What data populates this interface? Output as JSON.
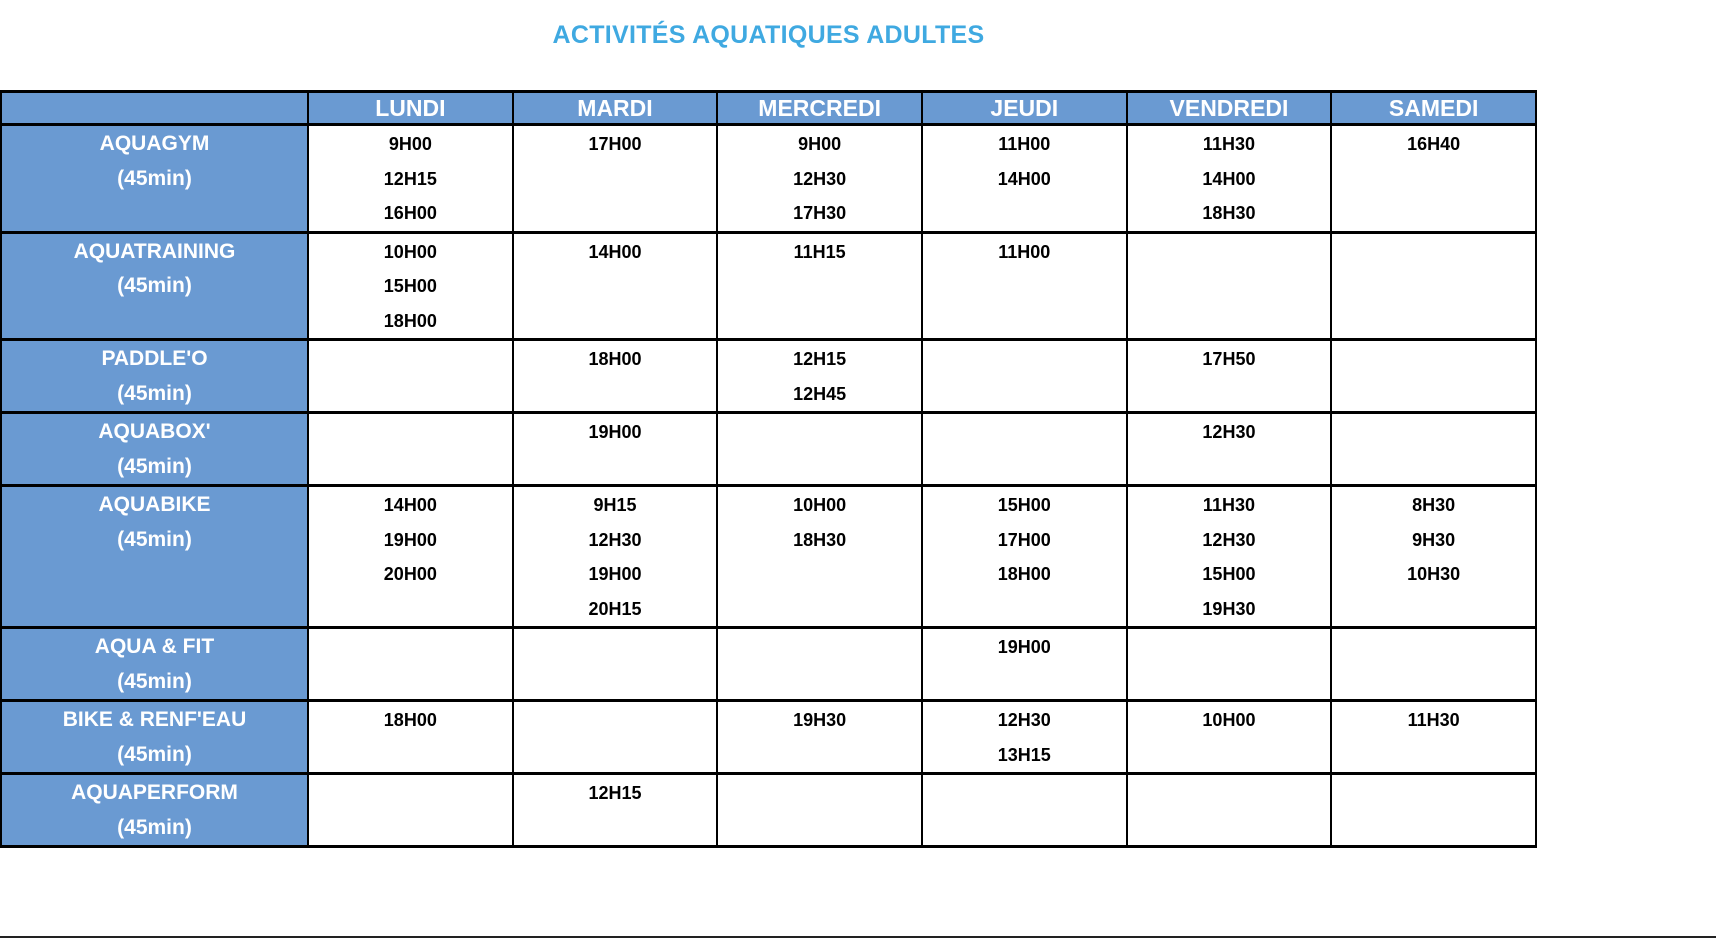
{
  "title": "ACTIVITÉS AQUATIQUES ADULTES",
  "colors": {
    "title_blue": "#3FA9E1",
    "header_blue": "#6A9AD2",
    "border_black": "#000000",
    "header_text": "#FFFFFF",
    "time_text": "#000000"
  },
  "table": {
    "day_headers": [
      "LUNDI",
      "MARDI",
      "MERCREDI",
      "JEUDI",
      "VENDREDI",
      "SAMEDI"
    ],
    "rows": [
      {
        "activity": "AQUAGYM",
        "duration": "(45min)",
        "times": [
          [
            "9H00",
            "12H15",
            "16H00"
          ],
          [
            "17H00"
          ],
          [
            "9H00",
            "12H30",
            "17H30"
          ],
          [
            "11H00",
            "14H00"
          ],
          [
            "11H30",
            "14H00",
            "18H30"
          ],
          [
            "16H40"
          ]
        ]
      },
      {
        "activity": "AQUATRAINING",
        "duration": "(45min)",
        "times": [
          [
            "10H00",
            "15H00",
            "18H00"
          ],
          [
            "14H00"
          ],
          [
            "11H15"
          ],
          [
            "11H00"
          ],
          [],
          []
        ]
      },
      {
        "activity": "PADDLE'O",
        "duration": "(45min)",
        "times": [
          [],
          [
            "18H00"
          ],
          [
            "12H15",
            "12H45"
          ],
          [],
          [
            "17H50"
          ],
          []
        ]
      },
      {
        "activity": "AQUABOX'",
        "duration": "(45min)",
        "times": [
          [],
          [
            "19H00"
          ],
          [],
          [],
          [
            "12H30"
          ],
          []
        ]
      },
      {
        "activity": "AQUABIKE",
        "duration": "(45min)",
        "times": [
          [
            "14H00",
            "19H00",
            "20H00"
          ],
          [
            "9H15",
            "12H30",
            "19H00",
            "20H15"
          ],
          [
            "10H00",
            "18H30"
          ],
          [
            "15H00",
            "17H00",
            "18H00"
          ],
          [
            "11H30",
            "12H30",
            "15H00",
            "19H30"
          ],
          [
            "8H30",
            "9H30",
            "10H30"
          ]
        ]
      },
      {
        "activity": "AQUA & FIT",
        "duration": "(45min)",
        "times": [
          [],
          [],
          [],
          [
            "19H00"
          ],
          [],
          []
        ]
      },
      {
        "activity": "BIKE & RENF'EAU",
        "duration": "(45min)",
        "times": [
          [
            "18H00"
          ],
          [],
          [
            "19H30"
          ],
          [
            "12H30",
            "13H15"
          ],
          [
            "10H00"
          ],
          [
            "11H30"
          ]
        ]
      },
      {
        "activity": "AQUAPERFORM",
        "duration": "(45min)",
        "times": [
          [],
          [
            "12H15"
          ],
          [],
          [],
          [],
          []
        ]
      }
    ]
  }
}
